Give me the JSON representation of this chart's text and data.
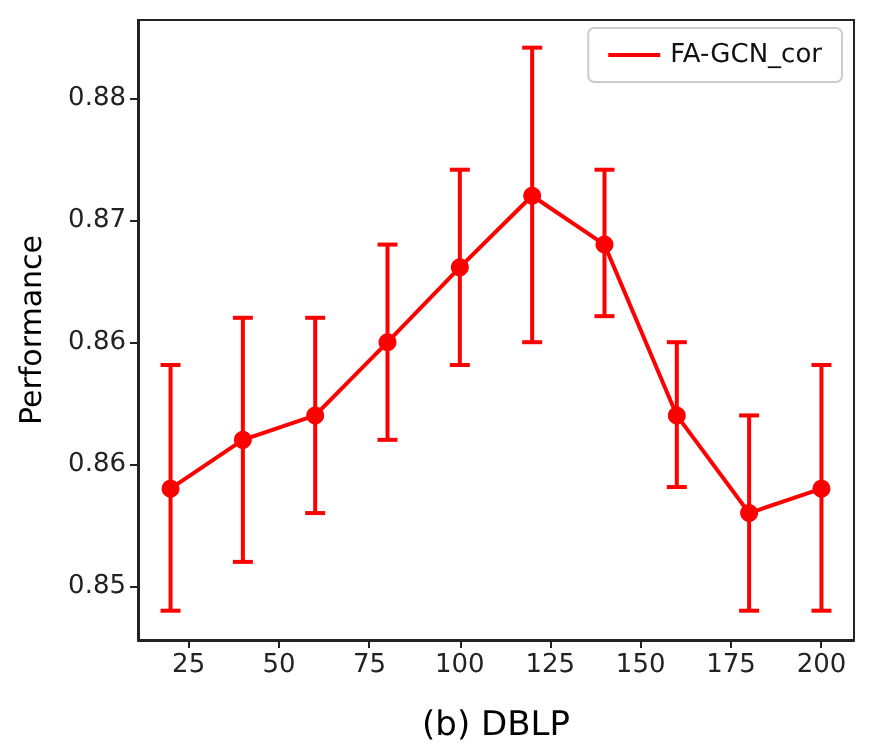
{
  "chart_data": {
    "type": "line",
    "xlabel": "(b) DBLP",
    "ylabel": "Performance",
    "x": [
      20,
      40,
      60,
      80,
      100,
      120,
      140,
      160,
      180,
      200
    ],
    "series": [
      {
        "name": "FA-GCN_cor",
        "color": "#ff0000",
        "values": [
          0.856,
          0.859,
          0.8605,
          0.865,
          0.8696,
          0.874,
          0.871,
          0.8605,
          0.8545,
          0.856
        ],
        "errors": [
          [
            0.8485,
            0.8636
          ],
          [
            0.8515,
            0.8665
          ],
          [
            0.8545,
            0.8665
          ],
          [
            0.859,
            0.871
          ],
          [
            0.8636,
            0.8756
          ],
          [
            0.865,
            0.8831
          ],
          [
            0.8666,
            0.8756
          ],
          [
            0.8561,
            0.865
          ],
          [
            0.8485,
            0.8605
          ],
          [
            0.8485,
            0.8636
          ]
        ]
      }
    ],
    "xlim": [
      11,
      209
    ],
    "xticks": [
      25,
      50,
      75,
      100,
      125,
      150,
      175,
      200
    ],
    "ylim": [
      0.8467,
      0.8848
    ],
    "yticks": [
      {
        "value": 0.85,
        "label": "0.85"
      },
      {
        "value": 0.8575,
        "label": "0.86"
      },
      {
        "value": 0.865,
        "label": "0.86"
      },
      {
        "value": 0.8725,
        "label": "0.87"
      },
      {
        "value": 0.88,
        "label": "0.88"
      }
    ],
    "grid": false,
    "legend": "top right",
    "marker": "circle",
    "line_style": "solid"
  }
}
